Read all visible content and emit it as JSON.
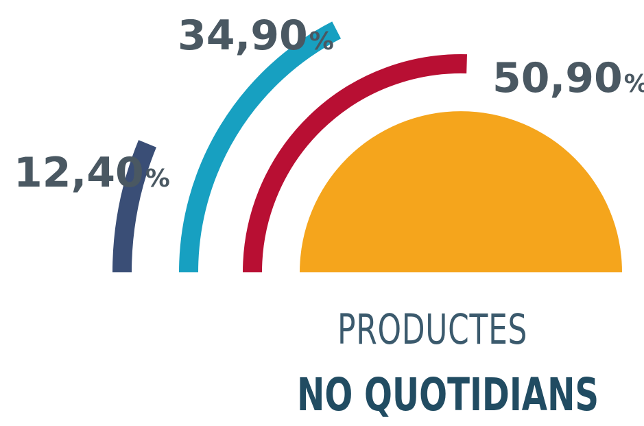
{
  "chart_data": {
    "type": "pie",
    "title_line1": "PRODUCTES",
    "title_line2": "NO QUOTIDIANS",
    "series": [
      {
        "value_label": "12,40",
        "unit": "%",
        "value": 12.4,
        "color": "#3a4e76"
      },
      {
        "value_label": "34,90",
        "unit": "%",
        "value": 34.9,
        "color": "#17a0c1"
      },
      {
        "value_label": "50,90",
        "unit": "%",
        "value": 50.9,
        "color": "#b80f33"
      }
    ],
    "base_color": "#f5a51c"
  }
}
